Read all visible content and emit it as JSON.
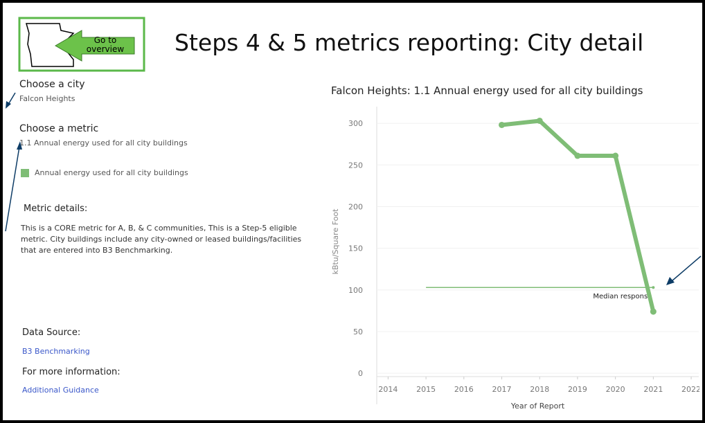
{
  "header": {
    "title": "Steps 4 & 5 metrics reporting: City detail",
    "button_lines": [
      "Go to",
      "overview"
    ]
  },
  "filters": {
    "city_label": "Choose a city",
    "city_value": "Falcon Heights",
    "metric_label": "Choose a metric",
    "metric_value": "1.1 Annual energy used for all city buildings"
  },
  "details": {
    "heading": "Metric details:",
    "text": "This is a CORE metric for A, B, & C communities, This is a Step-5 eligible metric. City buildings include any city-owned or leased buildings/facilities that are entered into B3 Benchmarking.",
    "source_label": "Data Source:",
    "source_link": "B3 Benchmarking",
    "info_label": "For more information:",
    "info_link": "Additional Guidance"
  },
  "chart_data": {
    "type": "line",
    "title": "Falcon Heights: 1.1 Annual energy used for all city buildings",
    "x_label": "Year of Report",
    "y_label": "kBtu/Square Foot",
    "x": [
      2017,
      2018,
      2019,
      2020,
      2021
    ],
    "series": [
      {
        "name": "Annual energy used for all city buildings",
        "color": "#7fbd76",
        "values": [
          298,
          303,
          261,
          261,
          74
        ]
      }
    ],
    "reference_line": {
      "label": "Median response",
      "value": 103,
      "x": [
        2015,
        2021
      ],
      "color": "#7fbd76"
    },
    "xlim": [
      2013.7,
      2022.2
    ],
    "xticks": [
      2014,
      2015,
      2016,
      2017,
      2018,
      2019,
      2020,
      2021,
      2022
    ],
    "ylim": [
      -4,
      320
    ],
    "yticks": [
      0,
      50,
      100,
      150,
      200,
      250,
      300
    ],
    "grid": true
  }
}
